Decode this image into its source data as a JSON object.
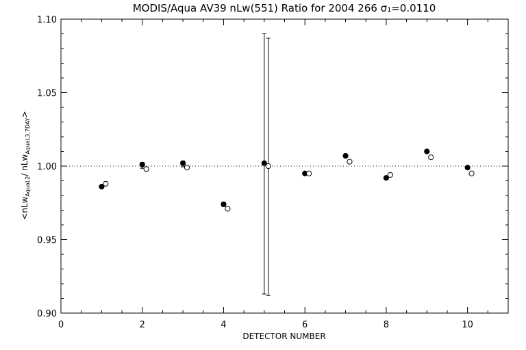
{
  "chart_data": {
    "type": "scatter",
    "title": "MODIS/Aqua AV39 nLw(551) Ratio for 2004 266 σ₁=0.0110",
    "xlabel": "DETECTOR NUMBER",
    "ylabel": "<nLw_AquaL2 / nLw_AquaL3,7DAY>",
    "ylabel_parts": {
      "open": "<nLw",
      "sub1": "AquaL2",
      "mid": "/ nLw",
      "sub2": "AquaL3,7DAY",
      "close": ">"
    },
    "xlim": [
      0,
      11
    ],
    "ylim": [
      0.9,
      1.1
    ],
    "x_ticks": [
      0,
      2,
      4,
      6,
      8,
      10
    ],
    "x_tick_labels": [
      "0",
      "2",
      "4",
      "6",
      "8",
      "10"
    ],
    "y_ticks": [
      0.9,
      0.95,
      1.0,
      1.05,
      1.1
    ],
    "y_tick_labels": [
      "0.90",
      "0.95",
      "1.00",
      "1.05",
      "1.10"
    ],
    "reference_line": 1.0,
    "series": [
      {
        "marker": "filled-circle",
        "x": [
          1,
          2,
          3,
          4,
          5,
          6,
          7,
          8,
          9,
          10
        ],
        "y": [
          0.986,
          1.001,
          1.002,
          0.974,
          1.002,
          0.995,
          1.007,
          0.992,
          1.01,
          0.999
        ],
        "error_bars": [
          null,
          [
            0.9985,
            1.0025
          ],
          [
            0.9995,
            1.0035
          ],
          [
            0.9725,
            0.9755
          ],
          [
            0.913,
            1.09
          ],
          null,
          null,
          null,
          null,
          null
        ]
      },
      {
        "marker": "open-circle",
        "x": [
          1.1,
          2.1,
          3.1,
          4.1,
          5.1,
          6.1,
          7.1,
          8.1,
          9.1,
          10.1
        ],
        "y": [
          0.988,
          0.998,
          0.999,
          0.971,
          1.0,
          0.995,
          1.003,
          0.994,
          1.006,
          0.995
        ],
        "error_bars": [
          null,
          null,
          null,
          null,
          [
            0.912,
            1.087
          ],
          null,
          null,
          null,
          null,
          null
        ]
      }
    ]
  }
}
